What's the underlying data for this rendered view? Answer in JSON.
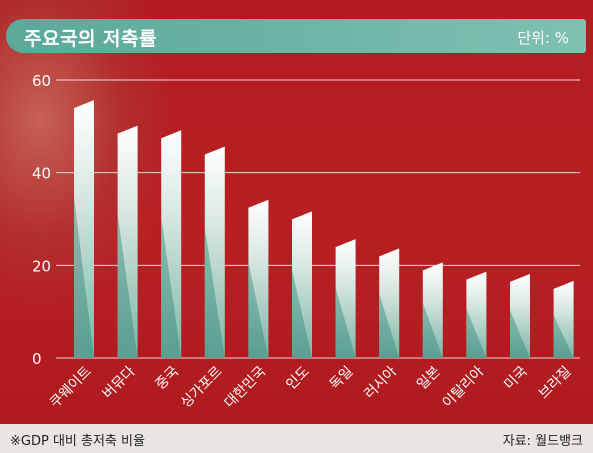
{
  "header": {
    "title": "주요국의 저축률",
    "unit": "단위: %"
  },
  "footer": {
    "note": "※GDP 대비 총저축 비율",
    "source": "자료: 월드뱅크"
  },
  "colors": {
    "background": "#b51d21",
    "bar_light": "#e6eeea",
    "bar_teal": "#5fa597",
    "title_bar": "#6cb5a6"
  },
  "chart_data": {
    "type": "bar",
    "title": "주요국의 저축률",
    "categories": [
      "쿠웨이트",
      "버뮤다",
      "중국",
      "싱가포르",
      "대한민국",
      "인도",
      "독일",
      "러시아",
      "일본",
      "이탈리아",
      "미국",
      "브라질"
    ],
    "values": [
      55.0,
      49.5,
      48.5,
      45.0,
      33.5,
      31.0,
      25.0,
      23.0,
      20.0,
      18.0,
      17.5,
      16.0
    ],
    "ylim": [
      0,
      60
    ],
    "yticks": [
      0,
      20,
      40,
      60
    ],
    "grid": true
  }
}
